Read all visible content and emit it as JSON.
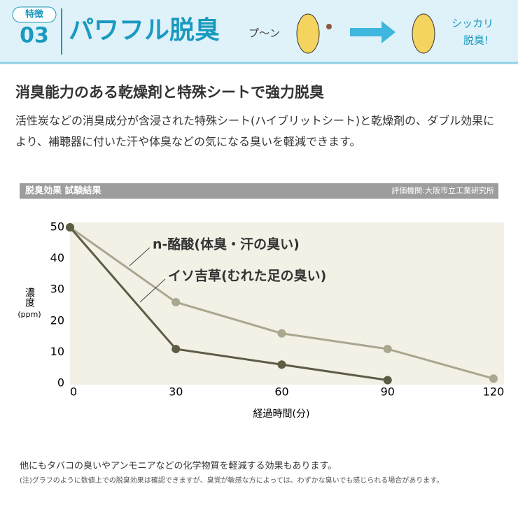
{
  "banner": {
    "label": "特徴",
    "number": "03",
    "title": "パワフル脱臭",
    "smell_text": "プ〜ン",
    "result_text_1": "シッカリ",
    "result_text_2": "脱臭!"
  },
  "heading": "消臭能力のある乾燥剤と特殊シートで強力脱臭",
  "description": "活性炭などの消臭成分が含浸された特殊シート(ハイブリットシート)と乾燥剤の、ダブル効果により、補聴器に付いた汗や体臭などの気になる臭いを軽減できます。",
  "chart_data": {
    "type": "line",
    "title": "脱臭効果 試験結果",
    "source": "評価機関:大阪市立工業研究所",
    "ylabel": "濃度",
    "yunit": "(ppm)",
    "xlabel": "経過時間(分)",
    "xlim": [
      0,
      120
    ],
    "xticks": [
      0,
      30,
      60,
      90,
      120
    ],
    "ylim": [
      0,
      50
    ],
    "yticks": [
      0,
      10,
      20,
      30,
      40,
      50
    ],
    "series": [
      {
        "name": "n-酪酸(体臭・汗の臭い)",
        "color": "#a8a78f",
        "x": [
          0,
          30,
          60,
          90,
          120
        ],
        "values": [
          50,
          26,
          16,
          11,
          1.5
        ]
      },
      {
        "name": "イソ吉草(むれた足の臭い)",
        "color": "#5d5c45",
        "x": [
          0,
          30,
          60,
          90
        ],
        "values": [
          50,
          11,
          6,
          1
        ]
      }
    ]
  },
  "notes": [
    "他にもタバコの臭いやアンモニアなどの化学物質を軽減する効果もあります。",
    "(注)グラフのように数値上での脱臭効果は確認できますが、臭覚が敏感な方によっては、わずかな臭いでも感じられる場合があります。"
  ]
}
